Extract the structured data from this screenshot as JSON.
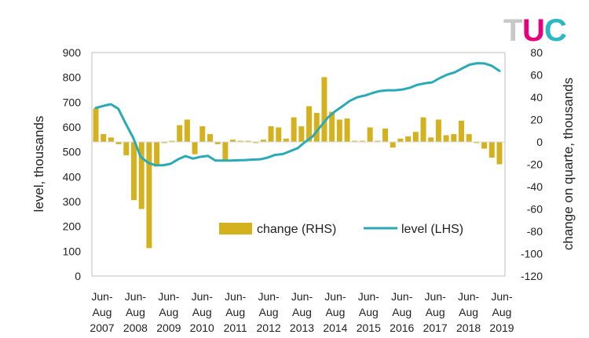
{
  "logo": {
    "letters": [
      "T",
      "U",
      "C"
    ],
    "colors": [
      "#c8c8c8",
      "#e6007e",
      "#2bb8c4"
    ]
  },
  "chart_data": {
    "type": "bar+line",
    "title": "",
    "left_axis": {
      "label": "level, thousands",
      "range": [
        0,
        900
      ],
      "ticks": [
        "0",
        "100",
        "200",
        "300",
        "400",
        "500",
        "600",
        "700",
        "800",
        "900"
      ]
    },
    "right_axis": {
      "label": "change on quarte, thousands",
      "range": [
        -120,
        80
      ],
      "ticks": [
        "80",
        "60",
        "40",
        "20",
        "0",
        "-20",
        "-40",
        "-60",
        "-80",
        "-100",
        "-120"
      ]
    },
    "x_labels": [
      {
        "line1": "Jun-",
        "line2": "Aug",
        "line3": "2007"
      },
      {
        "line1": "Jun-",
        "line2": "Aug",
        "line3": "2008"
      },
      {
        "line1": "Jun-",
        "line2": "Aug",
        "line3": "2009"
      },
      {
        "line1": "Jun-",
        "line2": "Aug",
        "line3": "2010"
      },
      {
        "line1": "Jun-",
        "line2": "Aug",
        "line3": "2011"
      },
      {
        "line1": "Jun-",
        "line2": "Aug",
        "line3": "2012"
      },
      {
        "line1": "Jun-",
        "line2": "Aug",
        "line3": "2013"
      },
      {
        "line1": "Jun-",
        "line2": "Aug",
        "line3": "2014"
      },
      {
        "line1": "Jun-",
        "line2": "Aug",
        "line3": "2015"
      },
      {
        "line1": "Jun-",
        "line2": "Aug",
        "line3": "2016"
      },
      {
        "line1": "Jun-",
        "line2": "Aug",
        "line3": "2017"
      },
      {
        "line1": "Jun-",
        "line2": "Aug",
        "line3": "2018"
      },
      {
        "line1": "Jun-",
        "line2": "Aug",
        "line3": "2019"
      }
    ],
    "legend": {
      "placement": "center-right",
      "bar_label": "change (RHS)",
      "line_label": "level (LHS)"
    },
    "series": [
      {
        "name": "change (RHS)",
        "type": "bar",
        "axis": "right",
        "color": "#d4b21f",
        "values": [
          30,
          7,
          4,
          -2,
          -12,
          -52,
          -60,
          -95,
          -22,
          -1,
          1,
          15,
          20,
          -11,
          14,
          7,
          -2,
          -16,
          2,
          1,
          1,
          -1,
          2,
          14,
          13,
          3,
          22,
          14,
          32,
          26,
          58,
          27,
          20,
          21,
          1,
          1,
          13,
          1,
          12,
          -5,
          3,
          5,
          9,
          22,
          4,
          20,
          6,
          7,
          19,
          7,
          -1,
          -6,
          -14,
          -20
        ]
      },
      {
        "name": "level (LHS)",
        "type": "line",
        "axis": "left",
        "color": "#2aaab6",
        "values": [
          677,
          685,
          692,
          674,
          614,
          557,
          480,
          456,
          446,
          446,
          452,
          470,
          483,
          473,
          480,
          484,
          465,
          465,
          465,
          466,
          467,
          469,
          470,
          477,
          488,
          491,
          503,
          515,
          540,
          562,
          600,
          637,
          663,
          684,
          706,
          720,
          727,
          737,
          745,
          748,
          748,
          751,
          758,
          770,
          776,
          780,
          797,
          811,
          820,
          836,
          851,
          857,
          856,
          846,
          826
        ]
      }
    ]
  }
}
